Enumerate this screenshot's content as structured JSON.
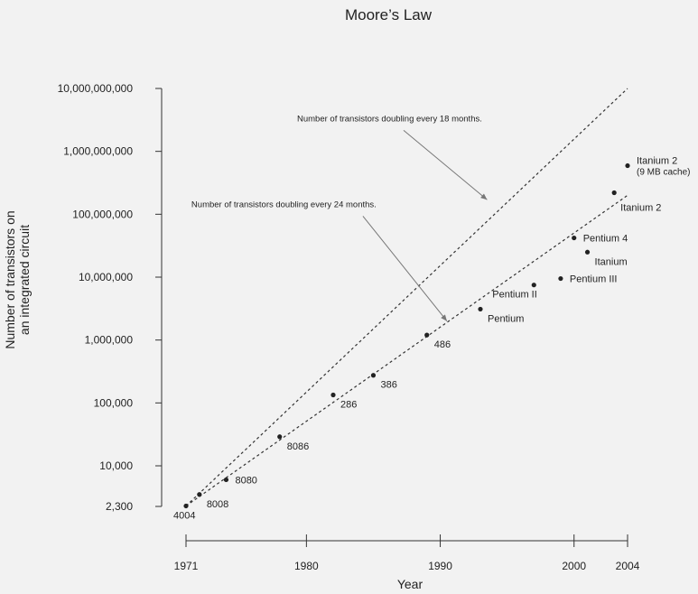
{
  "chart_data": {
    "type": "scatter",
    "title": "Moore’s Law",
    "xlabel": "Year",
    "ylabel_lines": [
      "Number of transistors on",
      "an integrated circuit"
    ],
    "y_scale": "log",
    "x_ticks": [
      {
        "value": 1971,
        "label": "1971"
      },
      {
        "value": 1980,
        "label": "1980"
      },
      {
        "value": 1990,
        "label": "1990"
      },
      {
        "value": 2000,
        "label": "2000"
      },
      {
        "value": 2004,
        "label": "2004"
      }
    ],
    "y_ticks": [
      {
        "value": 2300,
        "label": "2,300"
      },
      {
        "value": 10000,
        "label": "10,000"
      },
      {
        "value": 100000,
        "label": "100,000"
      },
      {
        "value": 1000000,
        "label": "1,000,000"
      },
      {
        "value": 10000000,
        "label": "10,000,000"
      },
      {
        "value": 100000000,
        "label": "100,000,000"
      },
      {
        "value": 1000000000,
        "label": "1,000,000,000"
      },
      {
        "value": 10000000000,
        "label": "10,000,000,000"
      }
    ],
    "points": [
      {
        "x": 1971,
        "y": 2300,
        "label": "4004",
        "pos": "below"
      },
      {
        "x": 1972,
        "y": 3500,
        "label": "8008",
        "pos": "below-right"
      },
      {
        "x": 1974,
        "y": 6000,
        "label": "8080",
        "pos": "right"
      },
      {
        "x": 1978,
        "y": 29000,
        "label": "8086",
        "pos": "below-right"
      },
      {
        "x": 1982,
        "y": 134000,
        "label": "286",
        "pos": "below-right"
      },
      {
        "x": 1985,
        "y": 275000,
        "label": "386",
        "pos": "below-right"
      },
      {
        "x": 1989,
        "y": 1200000,
        "label": "486",
        "pos": "below-right"
      },
      {
        "x": 1993,
        "y": 3100000,
        "label": "Pentium",
        "pos": "below-right"
      },
      {
        "x": 1997,
        "y": 7500000,
        "label": "Pentium II",
        "pos": "below-left"
      },
      {
        "x": 1999,
        "y": 9500000,
        "label": "Pentium III",
        "pos": "right"
      },
      {
        "x": 2000,
        "y": 42000000,
        "label": "Pentium 4",
        "pos": "right"
      },
      {
        "x": 2001,
        "y": 25000000,
        "label": "Itanium",
        "pos": "below-right"
      },
      {
        "x": 2003,
        "y": 220000000,
        "label": "Itanium 2",
        "pos": "below-right"
      },
      {
        "x": 2004,
        "y": 592000000,
        "label": "Itanium 2",
        "label2": "(9 MB cache)",
        "pos": "right"
      }
    ],
    "trend_lines": [
      {
        "name": "Number of transistors doubling every 18 months.",
        "from": [
          1971,
          2300
        ],
        "to": [
          2004,
          10000000000
        ]
      },
      {
        "name": "Number of transistors doubling every 24 months.",
        "from": [
          1971,
          2300
        ],
        "to": [
          2004,
          200000000
        ]
      }
    ],
    "annotations": [
      {
        "text": "Number of transistors doubling every 18 months.",
        "text_at": [
          1979.3,
          3000000000
        ],
        "arrow_to": [
          1993.5,
          170000000
        ]
      },
      {
        "text": "Number of transistors doubling every 24 months.",
        "text_at": [
          1971.4,
          130000000
        ],
        "arrow_to": [
          1990.5,
          2000000
        ]
      }
    ],
    "grid": false,
    "legend": "none"
  }
}
